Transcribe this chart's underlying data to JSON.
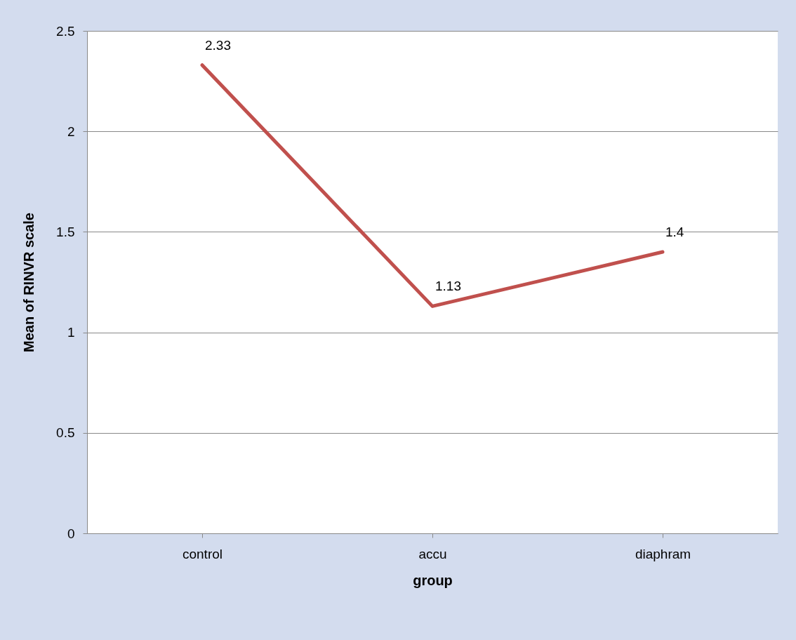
{
  "chart_data": {
    "type": "line",
    "xlabel": "group",
    "ylabel": "Mean of RINVR scale",
    "categories": [
      "control",
      "accu",
      "diaphram"
    ],
    "series": [
      {
        "color": "#c0504d",
        "values": [
          2.33,
          1.13,
          1.4
        ]
      }
    ],
    "ylim": [
      0,
      2.5
    ],
    "yticks": [
      0,
      0.5,
      1,
      1.5,
      2,
      2.5
    ],
    "grid": "y",
    "data_labels": true,
    "marker": "none",
    "line_style": "solid"
  }
}
